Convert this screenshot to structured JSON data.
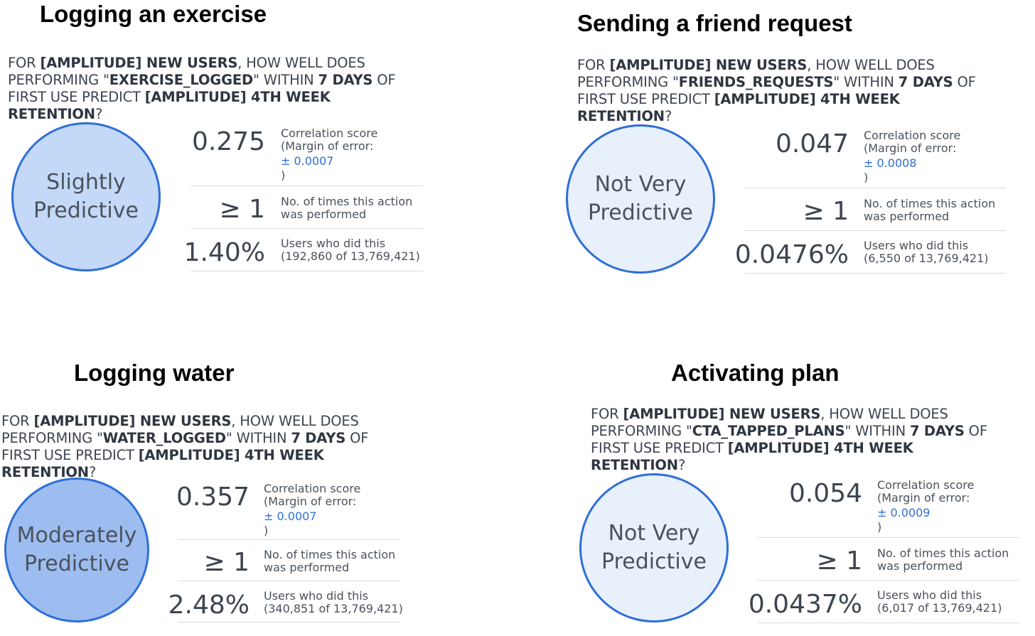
{
  "panels": [
    {
      "title": "Logging an exercise",
      "q_prefix": "FOR ",
      "q_segment": "[AMPLITUDE] NEW USERS",
      "q_mid1": ", HOW WELL DOES PERFORMING \"",
      "q_event": "EXERCISE_LOGGED",
      "q_mid2": "\" WITHIN ",
      "q_days": "7 DAYS",
      "q_mid3": " OF FIRST USE PREDICT ",
      "q_metric": "[AMPLITUDE] 4TH WEEK RETENTION",
      "q_end": "?",
      "verdict_line1": "Slightly",
      "verdict_line2": "Predictive",
      "circle_color": "#c4d8f7",
      "score": "0.275",
      "score_label": "Correlation score",
      "moe_label": "(Margin of error:",
      "moe_value": "± 0.0007",
      "moe_close": ")",
      "times": "≥ 1",
      "times_label_1": "No. of times this action",
      "times_label_2": "was performed",
      "pct": "1.40%",
      "users_label": "Users who did this",
      "users_count": "(192,860 of 13,769,421)"
    },
    {
      "title": "Sending a friend request",
      "q_prefix": "FOR ",
      "q_segment": "[AMPLITUDE] NEW USERS",
      "q_mid1": ", HOW WELL DOES PERFORMING \"",
      "q_event": "FRIENDS_REQUESTS",
      "q_mid2": "\" WITHIN ",
      "q_days": "7 DAYS",
      "q_mid3": " OF FIRST USE PREDICT ",
      "q_metric": "[AMPLITUDE] 4TH WEEK RETENTION",
      "q_end": "?",
      "verdict_line1": "Not Very",
      "verdict_line2": "Predictive",
      "circle_color": "#e8f0fc",
      "score": "0.047",
      "score_label": "Correlation score",
      "moe_label": "(Margin of error:",
      "moe_value": "± 0.0008",
      "moe_close": ")",
      "times": "≥ 1",
      "times_label_1": "No. of times this action",
      "times_label_2": "was performed",
      "pct": "0.0476%",
      "users_label": "Users who did this",
      "users_count": "(6,550 of 13,769,421)"
    },
    {
      "title": "Logging water",
      "q_prefix": "FOR ",
      "q_segment": "[AMPLITUDE] NEW USERS",
      "q_mid1": ", HOW WELL DOES PERFORMING \"",
      "q_event": "WATER_LOGGED",
      "q_mid2": "\" WITHIN ",
      "q_days": "7 DAYS",
      "q_mid3": " OF FIRST USE PREDICT ",
      "q_metric": "[AMPLITUDE] 4TH WEEK RETENTION",
      "q_end": "?",
      "verdict_line1": "Moderately",
      "verdict_line2": "Predictive",
      "circle_color": "#9dbdf0",
      "score": "0.357",
      "score_label": "Correlation score",
      "moe_label": "(Margin of error:",
      "moe_value": "± 0.0007",
      "moe_close": ")",
      "times": "≥ 1",
      "times_label_1": "No. of times this action",
      "times_label_2": "was performed",
      "pct": "2.48%",
      "users_label": "Users who did this",
      "users_count": "(340,851 of 13,769,421)"
    },
    {
      "title": "Activating plan",
      "q_prefix": "FOR ",
      "q_segment": "[AMPLITUDE] NEW USERS",
      "q_mid1": ", HOW WELL DOES PERFORMING \"",
      "q_event": "CTA_TAPPED_PLANS",
      "q_mid2": "\" WITHIN ",
      "q_days": "7 DAYS",
      "q_mid3": " OF FIRST USE PREDICT ",
      "q_metric": "[AMPLITUDE] 4TH WEEK RETENTION",
      "q_end": "?",
      "verdict_line1": "Not Very",
      "verdict_line2": "Predictive",
      "circle_color": "#e8f0fc",
      "score": "0.054",
      "score_label": "Correlation score",
      "moe_label": "(Margin of error:",
      "moe_value": "± 0.0009",
      "moe_close": ")",
      "times": "≥ 1",
      "times_label_1": "No. of times this action",
      "times_label_2": "was performed",
      "pct": "0.0437%",
      "users_label": "Users who did this",
      "users_count": "(6,017 of 13,769,421)"
    }
  ]
}
